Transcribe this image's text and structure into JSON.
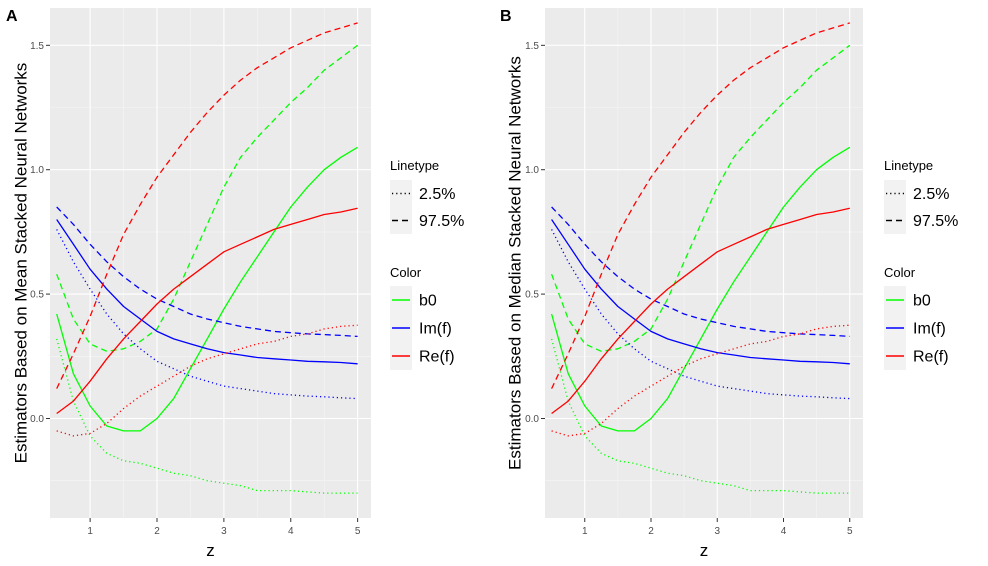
{
  "chart_data": [
    {
      "type": "line",
      "panel_label": "A",
      "xlabel": "z",
      "ylabel": "Estimators Based on Mean Stacked Neural Networks",
      "xlim": [
        0.4,
        5.2
      ],
      "ylim": [
        -0.4,
        1.65
      ],
      "x_ticks": [
        1,
        2,
        3,
        4,
        5
      ],
      "x_tick_labels": [
        "1",
        "2",
        "3",
        "4",
        "5"
      ],
      "y_ticks": [
        0.0,
        0.5,
        1.0,
        1.5
      ],
      "y_tick_labels": [
        "0.0",
        "0.5",
        "1.0",
        "1.5"
      ],
      "legend_linetype_title": "Linetype",
      "legend_linetype": [
        {
          "label": "2.5%",
          "dash": "dotted"
        },
        {
          "label": "97.5%",
          "dash": "dashed"
        }
      ],
      "legend_color_title": "Color",
      "legend_color": [
        {
          "label": "b0",
          "color": "#00ff00"
        },
        {
          "label": "Im(f)",
          "color": "#0000ff"
        },
        {
          "label": "Re(f)",
          "color": "#ff0000"
        }
      ],
      "series": [
        {
          "color": "#00ff00",
          "dash": "solid",
          "x": [
            0.5,
            0.75,
            1.0,
            1.25,
            1.5,
            1.75,
            2.0,
            2.25,
            2.5,
            2.75,
            3.0,
            3.25,
            3.5,
            3.75,
            4.0,
            4.25,
            4.5,
            4.75,
            5.0
          ],
          "y": [
            0.42,
            0.18,
            0.05,
            -0.03,
            -0.05,
            -0.05,
            0.0,
            0.08,
            0.2,
            0.32,
            0.44,
            0.55,
            0.65,
            0.75,
            0.85,
            0.93,
            1.0,
            1.05,
            1.09
          ]
        },
        {
          "color": "#00ff00",
          "dash": "dotted",
          "x": [
            0.5,
            0.75,
            1.0,
            1.25,
            1.5,
            1.75,
            2.0,
            2.25,
            2.5,
            2.75,
            3.0,
            3.25,
            3.5,
            3.75,
            4.0,
            4.25,
            4.5,
            4.75,
            5.0
          ],
          "y": [
            0.32,
            0.07,
            -0.07,
            -0.14,
            -0.17,
            -0.18,
            -0.2,
            -0.22,
            -0.23,
            -0.25,
            -0.26,
            -0.27,
            -0.29,
            -0.29,
            -0.29,
            -0.295,
            -0.3,
            -0.3,
            -0.3
          ]
        },
        {
          "color": "#00ff00",
          "dash": "dashed",
          "x": [
            0.5,
            0.75,
            1.0,
            1.25,
            1.5,
            1.75,
            2.0,
            2.25,
            2.5,
            2.75,
            3.0,
            3.25,
            3.5,
            3.75,
            4.0,
            4.25,
            4.5,
            4.75,
            5.0
          ],
          "y": [
            0.58,
            0.4,
            0.3,
            0.27,
            0.28,
            0.31,
            0.36,
            0.48,
            0.63,
            0.78,
            0.93,
            1.05,
            1.13,
            1.2,
            1.27,
            1.33,
            1.4,
            1.45,
            1.5
          ]
        },
        {
          "color": "#0000ff",
          "dash": "solid",
          "x": [
            0.5,
            0.75,
            1.0,
            1.25,
            1.5,
            1.75,
            2.0,
            2.25,
            2.5,
            2.75,
            3.0,
            3.25,
            3.5,
            3.75,
            4.0,
            4.25,
            4.5,
            4.75,
            5.0
          ],
          "y": [
            0.8,
            0.7,
            0.6,
            0.52,
            0.45,
            0.4,
            0.35,
            0.32,
            0.3,
            0.28,
            0.265,
            0.255,
            0.245,
            0.24,
            0.235,
            0.23,
            0.228,
            0.225,
            0.22
          ]
        },
        {
          "color": "#0000ff",
          "dash": "dotted",
          "x": [
            0.5,
            0.75,
            1.0,
            1.25,
            1.5,
            1.75,
            2.0,
            2.25,
            2.5,
            2.75,
            3.0,
            3.25,
            3.5,
            3.75,
            4.0,
            4.25,
            4.5,
            4.75,
            5.0
          ],
          "y": [
            0.76,
            0.63,
            0.52,
            0.42,
            0.34,
            0.28,
            0.23,
            0.2,
            0.17,
            0.15,
            0.13,
            0.12,
            0.11,
            0.1,
            0.095,
            0.09,
            0.087,
            0.083,
            0.08
          ]
        },
        {
          "color": "#0000ff",
          "dash": "dashed",
          "x": [
            0.5,
            0.75,
            1.0,
            1.25,
            1.5,
            1.75,
            2.0,
            2.25,
            2.5,
            2.75,
            3.0,
            3.25,
            3.5,
            3.75,
            4.0,
            4.25,
            4.5,
            4.75,
            5.0
          ],
          "y": [
            0.85,
            0.78,
            0.7,
            0.63,
            0.57,
            0.52,
            0.48,
            0.45,
            0.42,
            0.4,
            0.385,
            0.37,
            0.36,
            0.35,
            0.345,
            0.34,
            0.337,
            0.334,
            0.33
          ]
        },
        {
          "color": "#ff0000",
          "dash": "solid",
          "x": [
            0.5,
            0.75,
            1.0,
            1.25,
            1.5,
            1.75,
            2.0,
            2.25,
            2.5,
            2.75,
            3.0,
            3.25,
            3.5,
            3.75,
            4.0,
            4.25,
            4.5,
            4.75,
            5.0
          ],
          "y": [
            0.02,
            0.07,
            0.15,
            0.24,
            0.32,
            0.39,
            0.46,
            0.52,
            0.57,
            0.62,
            0.67,
            0.7,
            0.73,
            0.76,
            0.78,
            0.8,
            0.82,
            0.83,
            0.845
          ]
        },
        {
          "color": "#ff0000",
          "dash": "dotted",
          "x": [
            0.5,
            0.75,
            1.0,
            1.25,
            1.5,
            1.75,
            2.0,
            2.25,
            2.5,
            2.75,
            3.0,
            3.25,
            3.5,
            3.75,
            4.0,
            4.25,
            4.5,
            4.75,
            5.0
          ],
          "y": [
            -0.05,
            -0.07,
            -0.06,
            -0.02,
            0.04,
            0.09,
            0.13,
            0.17,
            0.21,
            0.24,
            0.26,
            0.28,
            0.3,
            0.31,
            0.33,
            0.34,
            0.36,
            0.37,
            0.375
          ]
        },
        {
          "color": "#ff0000",
          "dash": "dashed",
          "x": [
            0.5,
            0.75,
            1.0,
            1.25,
            1.5,
            1.75,
            2.0,
            2.25,
            2.5,
            2.75,
            3.0,
            3.25,
            3.5,
            3.75,
            4.0,
            4.25,
            4.5,
            4.75,
            5.0
          ],
          "y": [
            0.12,
            0.26,
            0.41,
            0.58,
            0.74,
            0.86,
            0.97,
            1.06,
            1.15,
            1.23,
            1.3,
            1.36,
            1.41,
            1.45,
            1.49,
            1.52,
            1.55,
            1.57,
            1.59
          ]
        }
      ]
    },
    {
      "type": "line",
      "panel_label": "B",
      "xlabel": "z",
      "ylabel": "Estimators Based on Median Stacked Neural Networks",
      "xlim": [
        0.4,
        5.2
      ],
      "ylim": [
        -0.4,
        1.65
      ],
      "x_ticks": [
        1,
        2,
        3,
        4,
        5
      ],
      "x_tick_labels": [
        "1",
        "2",
        "3",
        "4",
        "5"
      ],
      "y_ticks": [
        0.0,
        0.5,
        1.0,
        1.5
      ],
      "y_tick_labels": [
        "0.0",
        "0.5",
        "1.0",
        "1.5"
      ],
      "legend_linetype_title": "Linetype",
      "legend_linetype": [
        {
          "label": "2.5%",
          "dash": "dotted"
        },
        {
          "label": "97.5%",
          "dash": "dashed"
        }
      ],
      "legend_color_title": "Color",
      "legend_color": [
        {
          "label": "b0",
          "color": "#00ff00"
        },
        {
          "label": "Im(f)",
          "color": "#0000ff"
        },
        {
          "label": "Re(f)",
          "color": "#ff0000"
        }
      ],
      "series": [
        {
          "color": "#00ff00",
          "dash": "solid",
          "x": [
            0.5,
            0.75,
            1.0,
            1.25,
            1.5,
            1.75,
            2.0,
            2.25,
            2.5,
            2.75,
            3.0,
            3.25,
            3.5,
            3.75,
            4.0,
            4.25,
            4.5,
            4.75,
            5.0
          ],
          "y": [
            0.42,
            0.18,
            0.05,
            -0.03,
            -0.05,
            -0.05,
            0.0,
            0.08,
            0.2,
            0.32,
            0.44,
            0.55,
            0.65,
            0.75,
            0.85,
            0.93,
            1.0,
            1.05,
            1.09
          ]
        },
        {
          "color": "#00ff00",
          "dash": "dotted",
          "x": [
            0.5,
            0.75,
            1.0,
            1.25,
            1.5,
            1.75,
            2.0,
            2.25,
            2.5,
            2.75,
            3.0,
            3.25,
            3.5,
            3.75,
            4.0,
            4.25,
            4.5,
            4.75,
            5.0
          ],
          "y": [
            0.32,
            0.07,
            -0.07,
            -0.14,
            -0.17,
            -0.18,
            -0.2,
            -0.22,
            -0.23,
            -0.25,
            -0.26,
            -0.27,
            -0.29,
            -0.29,
            -0.29,
            -0.295,
            -0.3,
            -0.3,
            -0.3
          ]
        },
        {
          "color": "#00ff00",
          "dash": "dashed",
          "x": [
            0.5,
            0.75,
            1.0,
            1.25,
            1.5,
            1.75,
            2.0,
            2.25,
            2.5,
            2.75,
            3.0,
            3.25,
            3.5,
            3.75,
            4.0,
            4.25,
            4.5,
            4.75,
            5.0
          ],
          "y": [
            0.58,
            0.4,
            0.3,
            0.27,
            0.28,
            0.31,
            0.36,
            0.48,
            0.63,
            0.78,
            0.93,
            1.05,
            1.13,
            1.2,
            1.27,
            1.33,
            1.4,
            1.45,
            1.5
          ]
        },
        {
          "color": "#0000ff",
          "dash": "solid",
          "x": [
            0.5,
            0.75,
            1.0,
            1.25,
            1.5,
            1.75,
            2.0,
            2.25,
            2.5,
            2.75,
            3.0,
            3.25,
            3.5,
            3.75,
            4.0,
            4.25,
            4.5,
            4.75,
            5.0
          ],
          "y": [
            0.8,
            0.7,
            0.6,
            0.52,
            0.45,
            0.4,
            0.35,
            0.32,
            0.3,
            0.28,
            0.265,
            0.255,
            0.245,
            0.24,
            0.235,
            0.23,
            0.228,
            0.225,
            0.22
          ]
        },
        {
          "color": "#0000ff",
          "dash": "dotted",
          "x": [
            0.5,
            0.75,
            1.0,
            1.25,
            1.5,
            1.75,
            2.0,
            2.25,
            2.5,
            2.75,
            3.0,
            3.25,
            3.5,
            3.75,
            4.0,
            4.25,
            4.5,
            4.75,
            5.0
          ],
          "y": [
            0.76,
            0.63,
            0.52,
            0.42,
            0.34,
            0.28,
            0.23,
            0.2,
            0.17,
            0.15,
            0.13,
            0.12,
            0.11,
            0.1,
            0.095,
            0.09,
            0.087,
            0.083,
            0.08
          ]
        },
        {
          "color": "#0000ff",
          "dash": "dashed",
          "x": [
            0.5,
            0.75,
            1.0,
            1.25,
            1.5,
            1.75,
            2.0,
            2.25,
            2.5,
            2.75,
            3.0,
            3.25,
            3.5,
            3.75,
            4.0,
            4.25,
            4.5,
            4.75,
            5.0
          ],
          "y": [
            0.85,
            0.78,
            0.7,
            0.63,
            0.57,
            0.52,
            0.48,
            0.45,
            0.42,
            0.4,
            0.385,
            0.37,
            0.36,
            0.35,
            0.345,
            0.34,
            0.337,
            0.334,
            0.33
          ]
        },
        {
          "color": "#ff0000",
          "dash": "solid",
          "x": [
            0.5,
            0.75,
            1.0,
            1.25,
            1.5,
            1.75,
            2.0,
            2.25,
            2.5,
            2.75,
            3.0,
            3.25,
            3.5,
            3.75,
            4.0,
            4.25,
            4.5,
            4.75,
            5.0
          ],
          "y": [
            0.02,
            0.07,
            0.15,
            0.24,
            0.32,
            0.39,
            0.46,
            0.52,
            0.57,
            0.62,
            0.67,
            0.7,
            0.73,
            0.76,
            0.78,
            0.8,
            0.82,
            0.83,
            0.845
          ]
        },
        {
          "color": "#ff0000",
          "dash": "dotted",
          "x": [
            0.5,
            0.75,
            1.0,
            1.25,
            1.5,
            1.75,
            2.0,
            2.25,
            2.5,
            2.75,
            3.0,
            3.25,
            3.5,
            3.75,
            4.0,
            4.25,
            4.5,
            4.75,
            5.0
          ],
          "y": [
            -0.05,
            -0.07,
            -0.06,
            -0.02,
            0.04,
            0.09,
            0.13,
            0.17,
            0.21,
            0.24,
            0.26,
            0.28,
            0.3,
            0.31,
            0.33,
            0.34,
            0.36,
            0.37,
            0.375
          ]
        },
        {
          "color": "#ff0000",
          "dash": "dashed",
          "x": [
            0.5,
            0.75,
            1.0,
            1.25,
            1.5,
            1.75,
            2.0,
            2.25,
            2.5,
            2.75,
            3.0,
            3.25,
            3.5,
            3.75,
            4.0,
            4.25,
            4.5,
            4.75,
            5.0
          ],
          "y": [
            0.12,
            0.26,
            0.41,
            0.58,
            0.74,
            0.86,
            0.97,
            1.06,
            1.15,
            1.23,
            1.3,
            1.36,
            1.41,
            1.45,
            1.49,
            1.52,
            1.55,
            1.57,
            1.59
          ]
        }
      ]
    }
  ]
}
